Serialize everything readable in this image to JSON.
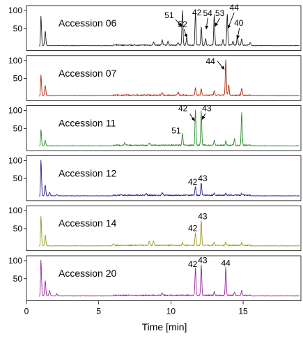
{
  "chart_data": {
    "type": "line",
    "xlabel": "Time [min]",
    "xlim": [
      0,
      19
    ],
    "ylim": [
      0,
      100
    ],
    "x_ticks": [
      0,
      5,
      10,
      15
    ],
    "y_ticks": [
      50,
      100
    ],
    "panels": [
      {
        "name": "Accession 06",
        "color": "#222222",
        "peaks": [
          {
            "x": 1.0,
            "y": 82,
            "w": 0.04
          },
          {
            "x": 1.3,
            "y": 40,
            "w": 0.04
          },
          {
            "x": 8.8,
            "y": 8,
            "w": 0.04
          },
          {
            "x": 9.4,
            "y": 14,
            "w": 0.04
          },
          {
            "x": 9.8,
            "y": 10,
            "w": 0.04
          },
          {
            "x": 10.5,
            "y": 8,
            "w": 0.04
          },
          {
            "x": 10.8,
            "y": 95,
            "w": 0.035
          },
          {
            "x": 11.1,
            "y": 22,
            "w": 0.035
          },
          {
            "x": 11.7,
            "y": 88,
            "w": 0.035
          },
          {
            "x": 12.1,
            "y": 50,
            "w": 0.035
          },
          {
            "x": 12.4,
            "y": 18,
            "w": 0.035
          },
          {
            "x": 13.0,
            "y": 85,
            "w": 0.035
          },
          {
            "x": 13.6,
            "y": 15,
            "w": 0.035
          },
          {
            "x": 13.9,
            "y": 85,
            "w": 0.035
          },
          {
            "x": 14.3,
            "y": 12,
            "w": 0.035
          },
          {
            "x": 14.6,
            "y": 28,
            "w": 0.035
          },
          {
            "x": 14.9,
            "y": 18,
            "w": 0.035
          },
          {
            "x": 15.5,
            "y": 8,
            "w": 0.035
          }
        ],
        "annotations": [
          {
            "label": "51",
            "peak_x": 10.8,
            "arrow": true
          },
          {
            "label": "52",
            "peak_x": 11.1,
            "arrow": true
          },
          {
            "label": "42",
            "peak_x": 11.7,
            "arrow": false
          },
          {
            "label": "54",
            "peak_x": 12.4,
            "arrow": true
          },
          {
            "label": "53",
            "peak_x": 13.0,
            "arrow": true
          },
          {
            "label": "44",
            "peak_x": 13.9,
            "arrow": true
          },
          {
            "label": "40",
            "peak_x": 14.6,
            "arrow": true
          }
        ]
      },
      {
        "name": "Accession 07",
        "color": "#b02a10",
        "peaks": [
          {
            "x": 1.0,
            "y": 58,
            "w": 0.04
          },
          {
            "x": 1.3,
            "y": 28,
            "w": 0.04
          },
          {
            "x": 9.4,
            "y": 8,
            "w": 0.04
          },
          {
            "x": 10.5,
            "y": 8,
            "w": 0.04
          },
          {
            "x": 11.7,
            "y": 20,
            "w": 0.035
          },
          {
            "x": 12.1,
            "y": 18,
            "w": 0.035
          },
          {
            "x": 13.0,
            "y": 12,
            "w": 0.035
          },
          {
            "x": 13.8,
            "y": 100,
            "w": 0.035
          },
          {
            "x": 14.0,
            "y": 28,
            "w": 0.035
          },
          {
            "x": 14.9,
            "y": 20,
            "w": 0.035
          }
        ],
        "annotations": [
          {
            "label": "44",
            "peak_x": 13.8,
            "arrow": true
          }
        ]
      },
      {
        "name": "Accession 11",
        "color": "#2e8b2e",
        "peaks": [
          {
            "x": 1.0,
            "y": 45,
            "w": 0.04
          },
          {
            "x": 1.3,
            "y": 15,
            "w": 0.04
          },
          {
            "x": 6.8,
            "y": 7,
            "w": 0.04
          },
          {
            "x": 8.5,
            "y": 6,
            "w": 0.04
          },
          {
            "x": 10.8,
            "y": 32,
            "w": 0.035
          },
          {
            "x": 11.7,
            "y": 98,
            "w": 0.035
          },
          {
            "x": 12.1,
            "y": 95,
            "w": 0.035
          },
          {
            "x": 13.0,
            "y": 15,
            "w": 0.035
          },
          {
            "x": 13.8,
            "y": 12,
            "w": 0.035
          },
          {
            "x": 14.4,
            "y": 18,
            "w": 0.035
          },
          {
            "x": 14.9,
            "y": 90,
            "w": 0.035
          }
        ],
        "annotations": [
          {
            "label": "42",
            "peak_x": 11.7,
            "arrow": true
          },
          {
            "label": "43",
            "peak_x": 12.1,
            "arrow": true
          },
          {
            "label": "51",
            "peak_x": 10.8,
            "arrow": false
          }
        ]
      },
      {
        "name": "Accession 12",
        "color": "#23238e",
        "peaks": [
          {
            "x": 1.0,
            "y": 100,
            "w": 0.04
          },
          {
            "x": 1.3,
            "y": 30,
            "w": 0.04
          },
          {
            "x": 1.6,
            "y": 10,
            "w": 0.04
          },
          {
            "x": 2.1,
            "y": 4,
            "w": 0.04
          },
          {
            "x": 8.3,
            "y": 5,
            "w": 0.04
          },
          {
            "x": 9.4,
            "y": 7,
            "w": 0.04
          },
          {
            "x": 11.7,
            "y": 25,
            "w": 0.035
          },
          {
            "x": 12.1,
            "y": 35,
            "w": 0.035
          },
          {
            "x": 13.0,
            "y": 6,
            "w": 0.035
          },
          {
            "x": 13.8,
            "y": 5,
            "w": 0.035
          },
          {
            "x": 14.9,
            "y": 5,
            "w": 0.035
          }
        ],
        "annotations": [
          {
            "label": "42",
            "peak_x": 11.7,
            "arrow": false
          },
          {
            "label": "43",
            "peak_x": 12.1,
            "arrow": false
          }
        ]
      },
      {
        "name": "Accession 14",
        "color": "#9a9a1e",
        "peaks": [
          {
            "x": 1.0,
            "y": 82,
            "w": 0.04
          },
          {
            "x": 1.3,
            "y": 30,
            "w": 0.04
          },
          {
            "x": 6.0,
            "y": 5,
            "w": 0.04
          },
          {
            "x": 8.5,
            "y": 10,
            "w": 0.04
          },
          {
            "x": 8.8,
            "y": 12,
            "w": 0.04
          },
          {
            "x": 10.8,
            "y": 8,
            "w": 0.035
          },
          {
            "x": 11.7,
            "y": 35,
            "w": 0.035
          },
          {
            "x": 12.1,
            "y": 68,
            "w": 0.035
          },
          {
            "x": 13.0,
            "y": 8,
            "w": 0.035
          },
          {
            "x": 13.8,
            "y": 9,
            "w": 0.035
          },
          {
            "x": 14.9,
            "y": 8,
            "w": 0.035
          }
        ],
        "annotations": [
          {
            "label": "42",
            "peak_x": 11.7,
            "arrow": false
          },
          {
            "label": "43",
            "peak_x": 12.1,
            "arrow": false
          }
        ]
      },
      {
        "name": "Accession 20",
        "color": "#9a2a9a",
        "peaks": [
          {
            "x": 1.0,
            "y": 100,
            "w": 0.04
          },
          {
            "x": 1.3,
            "y": 42,
            "w": 0.04
          },
          {
            "x": 1.6,
            "y": 15,
            "w": 0.04
          },
          {
            "x": 2.1,
            "y": 6,
            "w": 0.04
          },
          {
            "x": 9.4,
            "y": 6,
            "w": 0.04
          },
          {
            "x": 11.7,
            "y": 75,
            "w": 0.035
          },
          {
            "x": 12.1,
            "y": 85,
            "w": 0.035
          },
          {
            "x": 13.0,
            "y": 10,
            "w": 0.035
          },
          {
            "x": 13.8,
            "y": 78,
            "w": 0.035
          },
          {
            "x": 14.4,
            "y": 10,
            "w": 0.035
          },
          {
            "x": 14.9,
            "y": 15,
            "w": 0.035
          }
        ],
        "annotations": [
          {
            "label": "42",
            "peak_x": 11.7,
            "arrow": false
          },
          {
            "label": "43",
            "peak_x": 12.1,
            "arrow": false
          },
          {
            "label": "44",
            "peak_x": 13.8,
            "arrow": false
          }
        ]
      }
    ]
  }
}
